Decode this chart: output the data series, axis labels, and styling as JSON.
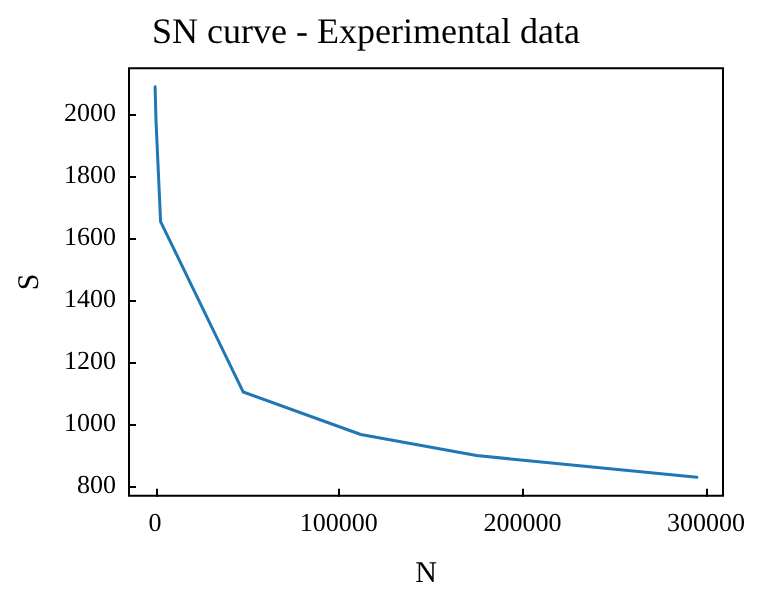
{
  "chart_data": {
    "type": "line",
    "title": "SN curve - Experimental data",
    "xlabel": "N",
    "ylabel": "S",
    "x": [
      0,
      500,
      3000,
      48000,
      112000,
      175000,
      295000
    ],
    "series": [
      {
        "color": "#1f77b4",
        "values": [
          2090,
          1980,
          1655,
          1105,
          968,
          900,
          830
        ]
      }
    ],
    "xlim": [
      -14750,
      309750
    ],
    "ylim": [
      767,
      2153
    ],
    "xticks": [
      0,
      100000,
      200000,
      300000
    ],
    "yticks": [
      800,
      1000,
      1200,
      1400,
      1600,
      1800,
      2000
    ],
    "grid": false,
    "legend": false,
    "marker": "none",
    "line_style": "solid"
  }
}
